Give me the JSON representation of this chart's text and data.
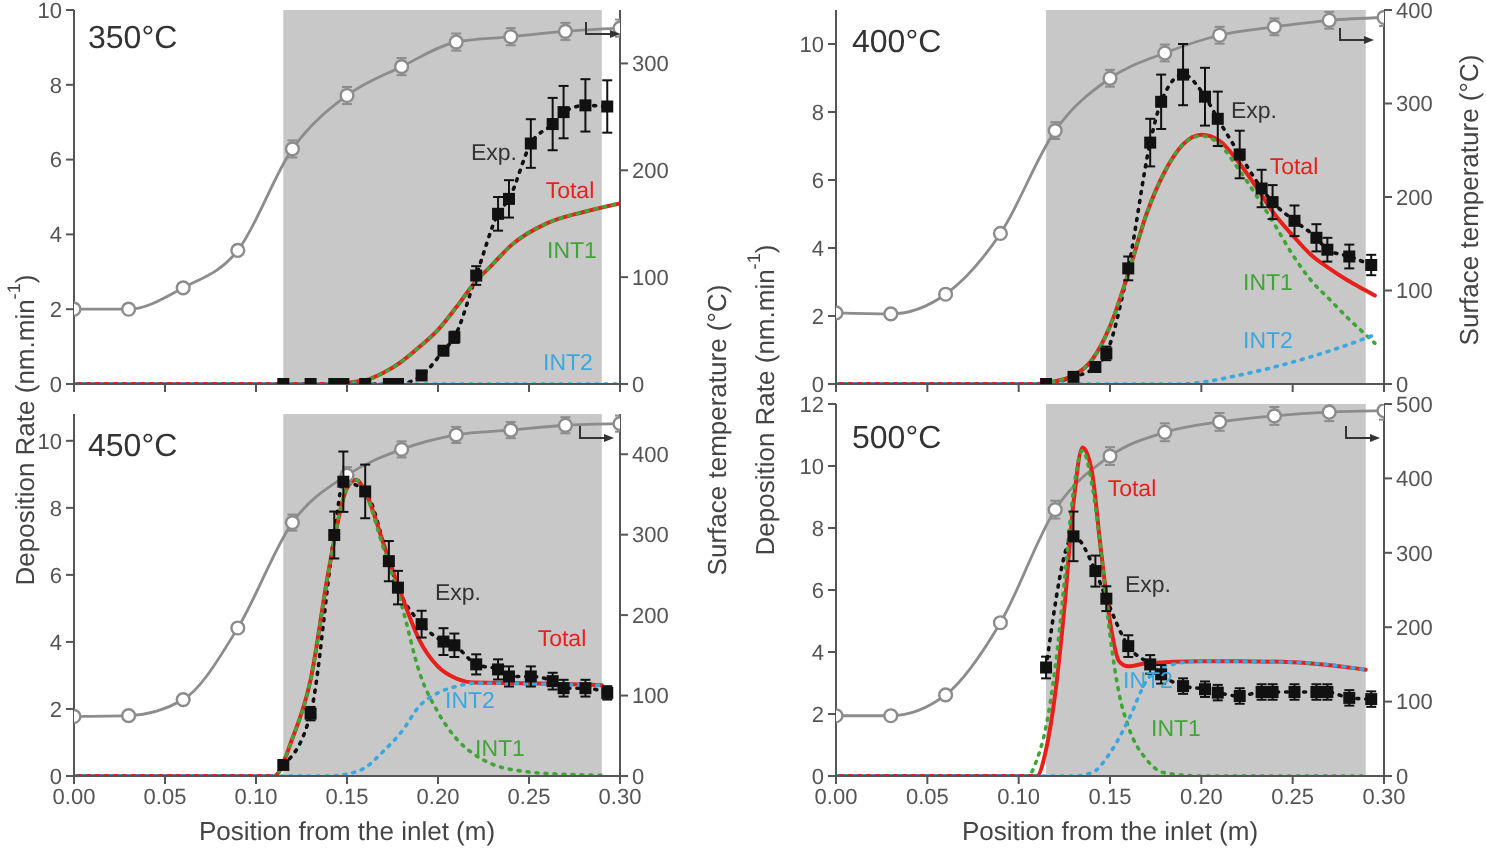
{
  "chart_data": [
    {
      "type": "line",
      "title": "350°C",
      "ylabel": "Deposition Rate (nm.min$^{-1}$)",
      "y2label": "Surface temperature (°C)",
      "tick_labels": "y",
      "xlim": [
        0,
        0.3
      ],
      "xticks": [
        0,
        0.05,
        0.1,
        0.15,
        0.2,
        0.25,
        0.3
      ],
      "ylim": [
        0,
        10
      ],
      "yticks": [
        0,
        2,
        4,
        6,
        8,
        10
      ],
      "y2lim": [
        0,
        350
      ],
      "y2ticks": [
        0,
        100,
        200,
        300
      ],
      "bands": [
        {
          "axis": "x",
          "from": 0.115,
          "to": 0.29,
          "color": "#c8c8c8"
        }
      ],
      "series": [
        {
          "axis": "y2",
          "color": "#8c8c8c",
          "marker": "circle",
          "line_style": "solid",
          "x": [
            0,
            0.03,
            0.06,
            0.09,
            0.12,
            0.15,
            0.18,
            0.21,
            0.24,
            0.27,
            0.3
          ],
          "values": [
            70,
            70,
            90,
            125,
            220,
            270,
            297,
            320,
            325,
            330,
            333
          ],
          "errors": [
            null,
            null,
            null,
            null,
            8,
            8,
            8,
            8,
            8,
            8,
            8
          ]
        },
        {
          "name": "Exp.",
          "color": "#111111",
          "marker": "square",
          "line_style": "dotted",
          "x": [
            0.115,
            0.13,
            0.143,
            0.148,
            0.16,
            0.173,
            0.178,
            0.191,
            0.203,
            0.209,
            0.221,
            0.233,
            0.239,
            0.251,
            0.263,
            0.269,
            0.281,
            0.293
          ],
          "values": [
            0,
            0,
            0,
            0,
            0,
            0,
            0,
            0.23,
            0.89,
            1.25,
            2.9,
            4.55,
            4.95,
            6.43,
            6.95,
            7.27,
            7.45,
            7.42
          ],
          "errors": [
            null,
            null,
            null,
            null,
            null,
            null,
            null,
            0.1,
            0.1,
            0.15,
            0.25,
            0.45,
            0.5,
            0.65,
            0.7,
            0.7,
            0.7,
            0.7
          ]
        },
        {
          "name": "Total",
          "color": "#e8201c",
          "marker": "none",
          "line_style": "solid",
          "x": [
            0,
            0.14,
            0.16,
            0.17,
            0.18,
            0.19,
            0.2,
            0.21,
            0.22,
            0.23,
            0.24,
            0.26,
            0.28,
            0.3
          ],
          "values": [
            0,
            0,
            0.1,
            0.3,
            0.6,
            1,
            1.45,
            2.05,
            2.7,
            3.2,
            3.7,
            4.3,
            4.6,
            4.83
          ]
        },
        {
          "name": "INT1",
          "color": "#3fa535",
          "marker": "none",
          "line_style": "dotted",
          "x": [
            0,
            0.14,
            0.16,
            0.17,
            0.18,
            0.19,
            0.2,
            0.21,
            0.22,
            0.23,
            0.24,
            0.26,
            0.28,
            0.3
          ],
          "values": [
            0,
            0,
            0.1,
            0.3,
            0.6,
            1,
            1.45,
            2.05,
            2.7,
            3.2,
            3.7,
            4.3,
            4.6,
            4.83
          ]
        },
        {
          "name": "INT2",
          "color": "#3aa8e0",
          "marker": "none",
          "line_style": "dotted",
          "x": [
            0,
            0.3
          ],
          "values": [
            0,
            0
          ]
        }
      ]
    },
    {
      "type": "line",
      "title": "400°C",
      "ylabel": "Deposition Rate (nm.min$^{-1}$)",
      "y2label": "Surface temperature (°C)",
      "tick_labels": "y",
      "xlim": [
        0,
        0.3
      ],
      "xticks": [
        0,
        0.05,
        0.1,
        0.15,
        0.2,
        0.25,
        0.3
      ],
      "ylim": [
        0,
        11
      ],
      "yticks": [
        0,
        2,
        4,
        6,
        8,
        10
      ],
      "y2lim": [
        0,
        400
      ],
      "y2ticks": [
        0,
        100,
        200,
        300,
        400
      ],
      "bands": [
        {
          "axis": "x",
          "from": 0.115,
          "to": 0.29,
          "color": "#c8c8c8"
        }
      ],
      "series": [
        {
          "axis": "y2",
          "color": "#8c8c8c",
          "marker": "circle",
          "line_style": "solid",
          "x": [
            0,
            0.03,
            0.06,
            0.09,
            0.12,
            0.15,
            0.18,
            0.21,
            0.24,
            0.27,
            0.3
          ],
          "values": [
            76,
            75,
            96,
            161,
            271,
            327,
            354,
            373,
            382,
            389,
            392
          ],
          "errors": [
            null,
            null,
            null,
            null,
            9,
            9,
            9,
            9,
            9,
            9,
            9
          ]
        },
        {
          "name": "Exp.",
          "color": "#111111",
          "marker": "square",
          "line_style": "dotted",
          "x": [
            0.115,
            0.13,
            0.142,
            0.148,
            0.16,
            0.172,
            0.178,
            0.19,
            0.202,
            0.209,
            0.221,
            0.233,
            0.239,
            0.251,
            0.263,
            0.269,
            0.281,
            0.293
          ],
          "values": [
            0,
            0.21,
            0.5,
            0.9,
            3.4,
            7.1,
            8.3,
            9.1,
            8.45,
            7.8,
            6.75,
            5.75,
            5.35,
            4.8,
            4.3,
            3.95,
            3.75,
            3.5
          ],
          "errors": [
            null,
            0.1,
            0.1,
            0.2,
            0.35,
            0.7,
            0.8,
            0.9,
            0.85,
            0.8,
            0.7,
            0.55,
            0.5,
            0.45,
            0.4,
            0.35,
            0.35,
            0.3
          ]
        },
        {
          "name": "Total",
          "color": "#e8201c",
          "marker": "none",
          "line_style": "solid",
          "x": [
            0,
            0.11,
            0.12,
            0.13,
            0.14,
            0.15,
            0.16,
            0.17,
            0.18,
            0.19,
            0.2,
            0.21,
            0.22,
            0.23,
            0.24,
            0.25,
            0.26,
            0.27,
            0.28,
            0.29,
            0.295
          ],
          "values": [
            0,
            0,
            0.08,
            0.25,
            0.7,
            1.7,
            3.25,
            5,
            6.25,
            7.05,
            7.33,
            7.15,
            6.55,
            5.8,
            5,
            4.37,
            3.8,
            3.4,
            3.05,
            2.75,
            2.6
          ]
        },
        {
          "name": "INT1",
          "color": "#3fa535",
          "marker": "none",
          "line_style": "dotted",
          "x": [
            0,
            0.11,
            0.12,
            0.13,
            0.14,
            0.15,
            0.16,
            0.17,
            0.18,
            0.19,
            0.2,
            0.21,
            0.22,
            0.23,
            0.24,
            0.25,
            0.26,
            0.27,
            0.28,
            0.29,
            0.295
          ],
          "values": [
            0,
            0,
            0.08,
            0.25,
            0.7,
            1.7,
            3.25,
            5,
            6.25,
            7.05,
            7.3,
            7.05,
            6.35,
            5.55,
            4.7,
            3.8,
            3.05,
            2.5,
            1.95,
            1.45,
            1.2
          ]
        },
        {
          "name": "INT2",
          "color": "#3aa8e0",
          "marker": "none",
          "line_style": "dotted",
          "x": [
            0,
            0.19,
            0.2,
            0.22,
            0.24,
            0.26,
            0.28,
            0.295
          ],
          "values": [
            0,
            0,
            0.05,
            0.25,
            0.5,
            0.8,
            1.15,
            1.45
          ]
        }
      ]
    },
    {
      "type": "line",
      "title": "450°C",
      "xlabel": "Position from the inlet (m)",
      "xlim": [
        0,
        0.3
      ],
      "xticks": [
        {
          "value": 0,
          "label": "0.00"
        },
        {
          "value": 0.05,
          "label": "0.05"
        },
        {
          "value": 0.1,
          "label": "0.10"
        },
        {
          "value": 0.15,
          "label": "0.15"
        },
        {
          "value": 0.2,
          "label": "0.20"
        },
        {
          "value": 0.25,
          "label": "0.25"
        },
        {
          "value": 0.3,
          "label": "0.30"
        }
      ],
      "ylim": [
        0,
        10.8
      ],
      "yticks": [
        0,
        2,
        4,
        6,
        8,
        10
      ],
      "y2lim": [
        0,
        450
      ],
      "y2ticks": [
        0,
        100,
        200,
        300,
        400
      ],
      "bands": [
        {
          "axis": "x",
          "from": 0.115,
          "to": 0.29,
          "color": "#c8c8c8"
        }
      ],
      "series": [
        {
          "axis": "y2",
          "color": "#8c8c8c",
          "marker": "circle",
          "line_style": "solid",
          "x": [
            0,
            0.03,
            0.06,
            0.09,
            0.12,
            0.15,
            0.18,
            0.21,
            0.24,
            0.27,
            0.3
          ],
          "values": [
            74,
            75,
            95,
            184,
            315,
            374,
            406,
            424,
            430,
            436,
            438
          ],
          "errors": [
            null,
            null,
            null,
            null,
            10,
            10,
            10,
            10,
            10,
            10,
            10
          ]
        },
        {
          "name": "Exp.",
          "color": "#111111",
          "marker": "square",
          "line_style": "dotted",
          "x": [
            0.115,
            0.13,
            0.143,
            0.148,
            0.16,
            0.173,
            0.178,
            0.191,
            0.203,
            0.209,
            0.221,
            0.233,
            0.239,
            0.251,
            0.263,
            0.269,
            0.281,
            0.293
          ],
          "values": [
            0.33,
            1.86,
            7.19,
            8.78,
            8.49,
            6.41,
            5.62,
            4.53,
            4.01,
            3.9,
            3.33,
            3.18,
            2.97,
            2.97,
            2.83,
            2.62,
            2.62,
            2.48
          ],
          "errors": [
            0.1,
            0.2,
            0.7,
            0.9,
            0.8,
            0.6,
            0.5,
            0.4,
            0.4,
            0.35,
            0.3,
            0.3,
            0.3,
            0.3,
            0.25,
            0.25,
            0.25,
            0.2
          ]
        },
        {
          "name": "Total",
          "color": "#e8201c",
          "marker": "none",
          "line_style": "solid",
          "x": [
            0,
            0.11,
            0.12,
            0.13,
            0.14,
            0.15,
            0.155,
            0.16,
            0.17,
            0.18,
            0.19,
            0.2,
            0.21,
            0.22,
            0.25,
            0.29
          ],
          "values": [
            0,
            0,
            1.12,
            2.87,
            6.16,
            8.59,
            8.84,
            8.49,
            6.94,
            5.39,
            4.03,
            3.26,
            2.91,
            2.79,
            2.77,
            2.71
          ]
        },
        {
          "name": "INT1",
          "color": "#3fa535",
          "marker": "none",
          "line_style": "dotted",
          "x": [
            0,
            0.11,
            0.12,
            0.13,
            0.14,
            0.15,
            0.155,
            0.16,
            0.17,
            0.18,
            0.19,
            0.2,
            0.21,
            0.22,
            0.23,
            0.25,
            0.27,
            0.29
          ],
          "values": [
            0,
            0,
            1.12,
            2.87,
            6.16,
            8.59,
            8.84,
            8.45,
            6.8,
            5.1,
            3.06,
            1.9,
            1.12,
            0.64,
            0.35,
            0.12,
            0.05,
            0.02
          ]
        },
        {
          "name": "INT2",
          "color": "#3aa8e0",
          "marker": "none",
          "line_style": "dotted",
          "x": [
            0,
            0.14,
            0.15,
            0.16,
            0.17,
            0.18,
            0.19,
            0.2,
            0.21,
            0.22,
            0.29
          ],
          "values": [
            0,
            0,
            0.06,
            0.25,
            0.74,
            1.32,
            2.1,
            2.48,
            2.67,
            2.77,
            2.7
          ]
        }
      ]
    },
    {
      "type": "line",
      "title": "500°C",
      "xlabel": "Position from the inlet (m)",
      "xlim": [
        0,
        0.3
      ],
      "xticks": [
        {
          "value": 0,
          "label": "0.00"
        },
        {
          "value": 0.05,
          "label": "0.05"
        },
        {
          "value": 0.1,
          "label": "0.10"
        },
        {
          "value": 0.15,
          "label": "0.15"
        },
        {
          "value": 0.2,
          "label": "0.20"
        },
        {
          "value": 0.25,
          "label": "0.25"
        },
        {
          "value": 0.3,
          "label": "0.30"
        }
      ],
      "ylim": [
        0,
        12
      ],
      "yticks": [
        0,
        2,
        4,
        6,
        8,
        10,
        12
      ],
      "y2lim": [
        0,
        500
      ],
      "y2ticks": [
        0,
        100,
        200,
        300,
        400,
        500
      ],
      "bands": [
        {
          "axis": "x",
          "from": 0.115,
          "to": 0.29,
          "color": "#c8c8c8"
        }
      ],
      "series": [
        {
          "axis": "y2",
          "color": "#8c8c8c",
          "marker": "circle",
          "line_style": "solid",
          "x": [
            0,
            0.03,
            0.06,
            0.09,
            0.12,
            0.15,
            0.18,
            0.21,
            0.24,
            0.27,
            0.3
          ],
          "values": [
            81,
            81,
            109,
            206,
            358,
            430,
            462,
            476,
            484,
            489,
            491
          ],
          "errors": [
            null,
            null,
            null,
            null,
            12,
            12,
            12,
            12,
            12,
            12,
            12
          ]
        },
        {
          "name": "Exp.",
          "color": "#111111",
          "marker": "square",
          "line_style": "dotted",
          "x": [
            0.115,
            0.13,
            0.142,
            0.148,
            0.16,
            0.172,
            0.178,
            0.19,
            0.202,
            0.209,
            0.221,
            0.233,
            0.239,
            0.251,
            0.263,
            0.269,
            0.281,
            0.293
          ],
          "values": [
            3.5,
            7.73,
            6.61,
            5.72,
            4.19,
            3.6,
            3.28,
            2.9,
            2.8,
            2.69,
            2.58,
            2.71,
            2.71,
            2.71,
            2.71,
            2.71,
            2.52,
            2.48
          ],
          "errors": [
            0.35,
            0.8,
            0.5,
            0.4,
            0.35,
            0.3,
            0.3,
            0.25,
            0.25,
            0.25,
            0.25,
            0.25,
            0.25,
            0.25,
            0.25,
            0.25,
            0.25,
            0.25
          ]
        },
        {
          "name": "Total",
          "color": "#e8201c",
          "marker": "none",
          "line_style": "solid",
          "x": [
            0,
            0.11,
            0.115,
            0.12,
            0.125,
            0.13,
            0.135,
            0.14,
            0.145,
            0.15,
            0.155,
            0.16,
            0.17,
            0.2,
            0.22,
            0.25,
            0.29
          ],
          "values": [
            0,
            0,
            0.85,
            2.65,
            5.4,
            8.8,
            10.6,
            9.85,
            7.3,
            4.98,
            3.7,
            3.54,
            3.64,
            3.7,
            3.7,
            3.67,
            3.43
          ]
        },
        {
          "name": "INT1",
          "color": "#3fa535",
          "marker": "none",
          "line_style": "dotted",
          "x": [
            0,
            0.105,
            0.11,
            0.115,
            0.12,
            0.125,
            0.13,
            0.135,
            0.14,
            0.145,
            0.15,
            0.155,
            0.16,
            0.17,
            0.18,
            0.2,
            0.29
          ],
          "values": [
            0,
            0,
            0.53,
            1.6,
            3.5,
            6.25,
            9.2,
            10.5,
            9.45,
            7.3,
            4.55,
            2.65,
            1.6,
            0.53,
            0.1,
            0,
            0
          ]
        },
        {
          "name": "INT2",
          "color": "#3aa8e0",
          "marker": "none",
          "line_style": "dotted",
          "x": [
            0,
            0.13,
            0.14,
            0.15,
            0.16,
            0.17,
            0.18,
            0.2,
            0.25,
            0.29
          ],
          "values": [
            0,
            0,
            0.1,
            0.74,
            1.8,
            3.07,
            3.54,
            3.7,
            3.67,
            3.43
          ]
        }
      ]
    }
  ]
}
